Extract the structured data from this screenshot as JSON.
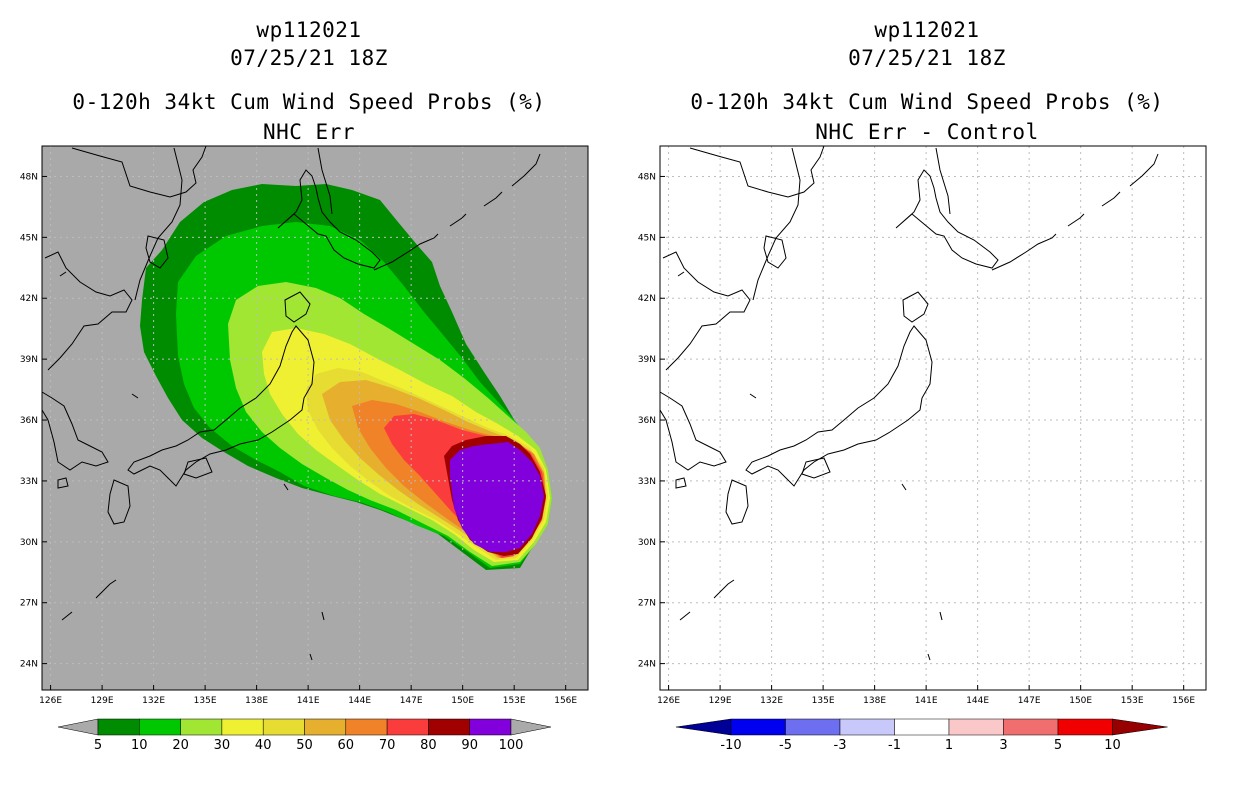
{
  "panels": [
    {
      "title_line1": "wp112021",
      "title_line2": "07/25/21 18Z",
      "title_line3": "0-120h 34kt Cum Wind Speed Probs (%)",
      "title_line4": "NHC Err",
      "background": "#a9a9a9"
    },
    {
      "title_line1": "wp112021",
      "title_line2": "07/25/21 18Z",
      "title_line3": "0-120h 34kt Cum Wind Speed Probs (%)",
      "title_line4": "NHC Err - Control",
      "background": "#ffffff"
    }
  ],
  "axes": {
    "lon_labels": [
      "126E",
      "129E",
      "132E",
      "135E",
      "138E",
      "141E",
      "144E",
      "147E",
      "150E",
      "153E",
      "156E"
    ],
    "lat_labels": [
      "48N",
      "45N",
      "42N",
      "39N",
      "36N",
      "33N",
      "30N",
      "27N",
      "24N"
    ]
  },
  "colorbars": {
    "probs": {
      "labels": [
        "5",
        "10",
        "20",
        "30",
        "40",
        "50",
        "60",
        "70",
        "80",
        "90",
        "100"
      ],
      "colors": [
        "#aaaaaa",
        "#008c00",
        "#00c800",
        "#a0e632",
        "#f0f032",
        "#e6dc32",
        "#e6af2d",
        "#f08228",
        "#fa3c3c",
        "#a00000",
        "#8200dc",
        "#aaaaaa"
      ]
    },
    "diff": {
      "labels": [
        "-10",
        "-5",
        "-3",
        "-1",
        "1",
        "3",
        "5",
        "10"
      ],
      "colors": [
        "#000096",
        "#0000f0",
        "#6e6ef0",
        "#c8c8fa",
        "#ffffff",
        "#fac8c8",
        "#f06e6e",
        "#f00000",
        "#960000"
      ]
    }
  }
}
